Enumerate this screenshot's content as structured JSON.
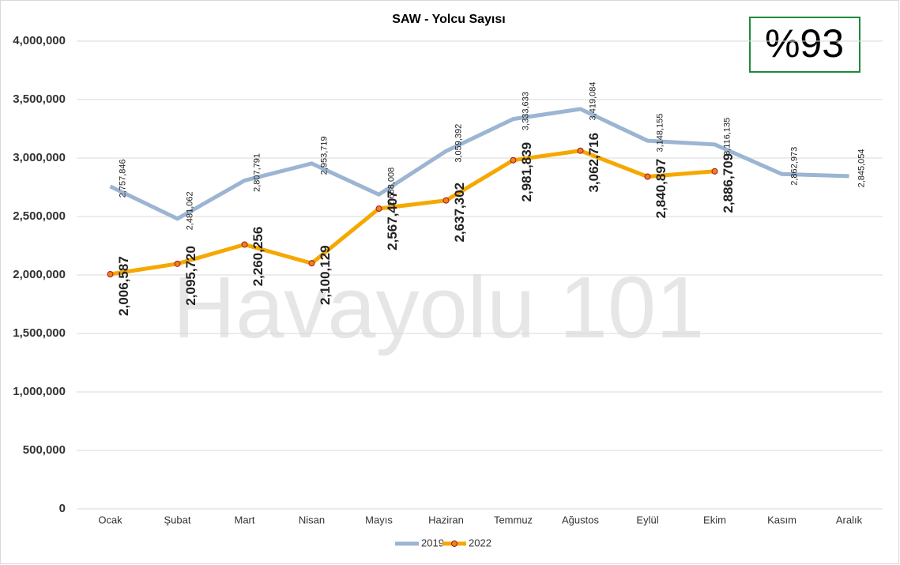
{
  "chart_data": {
    "type": "line",
    "title": "SAW - Yolcu Sayısı",
    "annotations": [
      "%93",
      "Havayolu 101"
    ],
    "categories": [
      "Ocak",
      "Şubat",
      "Mart",
      "Nisan",
      "Mayıs",
      "Haziran",
      "Temmuz",
      "Ağustos",
      "Eylül",
      "Ekim",
      "Kasım",
      "Aralık"
    ],
    "series": [
      {
        "name": "2019",
        "color": "#9bb5d3",
        "values": [
          2757846,
          2481062,
          2807791,
          2953719,
          2688008,
          3059392,
          3333633,
          3419084,
          3148155,
          3116135,
          2862973,
          2845054
        ],
        "value_labels": [
          "2,757,846",
          "2,481,062",
          "2,807,791",
          "2,953,719",
          "2,688,008",
          "3,059,392",
          "3,333,633",
          "3,419,084",
          "3,148,155",
          "3,116,135",
          "2,862,973",
          "2,845,054"
        ]
      },
      {
        "name": "2022",
        "color": "#f5a800",
        "values": [
          2006587,
          2095720,
          2260256,
          2100129,
          2567407,
          2637302,
          2981839,
          3062716,
          2840897,
          2886709,
          null,
          null
        ],
        "value_labels": [
          "2,006,587",
          "2,095,720",
          "2,260,256",
          "2,100,129",
          "2,567,407",
          "2,637,302",
          "2,981,839",
          "3,062,716",
          "2,840,897",
          "2,886,709",
          null,
          null
        ]
      }
    ],
    "ylim": [
      0,
      4000000
    ],
    "yticks": [
      0,
      {
        "value": 500000,
        "label": "500,000"
      },
      {
        "value": 1000000,
        "label": "1,000,000"
      },
      {
        "value": 1500000,
        "label": "1,500,000"
      },
      {
        "value": 2000000,
        "label": "2,000,000"
      },
      {
        "value": 2500000,
        "label": "2,500,000"
      },
      {
        "value": 3000000,
        "label": "3,000,000"
      },
      {
        "value": 3500000,
        "label": "3,500,000"
      },
      {
        "value": 4000000,
        "label": "4,000,000"
      }
    ],
    "grid": true,
    "legend": "bottom"
  }
}
